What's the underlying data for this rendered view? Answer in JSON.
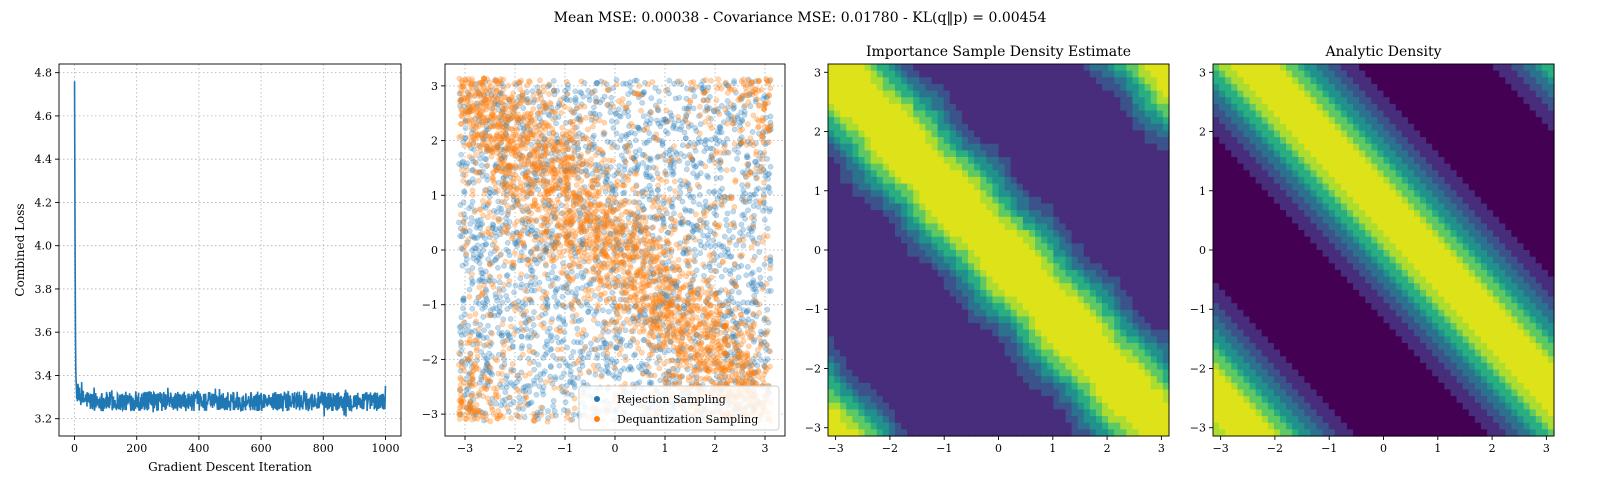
{
  "figure": {
    "suptitle": "Mean MSE: 0.00038 - Covariance MSE: 0.01780 - KL(q‖p) = 0.00454"
  },
  "chart_data": [
    {
      "type": "line",
      "title": "",
      "xlabel": "Gradient Descent Iteration",
      "ylabel": "Combined Loss",
      "xlim": [
        -50,
        1050
      ],
      "ylim": [
        3.12,
        4.84
      ],
      "xticks": [
        0,
        200,
        400,
        600,
        800,
        1000
      ],
      "yticks": [
        3.2,
        3.4,
        3.6,
        3.8,
        4.0,
        4.2,
        4.4,
        4.6,
        4.8
      ],
      "grid": true,
      "color": "#1f77b4",
      "series": [
        {
          "x": [
            0,
            1,
            2,
            3,
            4,
            5,
            6,
            8,
            10,
            13,
            16,
            20,
            25,
            30,
            40,
            50,
            60,
            80,
            100,
            130,
            160,
            200,
            250,
            300,
            350,
            400,
            450,
            500,
            550,
            600,
            650,
            700,
            750,
            800,
            850,
            900,
            950,
            1000
          ],
          "y": [
            4.76,
            4.3,
            3.9,
            3.6,
            3.43,
            3.38,
            3.34,
            3.32,
            3.31,
            3.3,
            3.3,
            3.3,
            3.29,
            3.29,
            3.29,
            3.28,
            3.28,
            3.28,
            3.28,
            3.28,
            3.28,
            3.28,
            3.28,
            3.28,
            3.28,
            3.28,
            3.28,
            3.28,
            3.28,
            3.28,
            3.28,
            3.28,
            3.28,
            3.28,
            3.28,
            3.28,
            3.28,
            3.28
          ],
          "noise_band": [
            3.2,
            3.37
          ]
        }
      ]
    },
    {
      "type": "scatter",
      "title": "",
      "xlabel": "",
      "ylabel": "",
      "xlim": [
        -3.4,
        3.4
      ],
      "ylim": [
        -3.4,
        3.4
      ],
      "xticks": [
        -3,
        -2,
        -1,
        0,
        1,
        2,
        3
      ],
      "yticks": [
        -3,
        -2,
        -1,
        0,
        1,
        2,
        3
      ],
      "grid": true,
      "legend_position": "bottom-right",
      "series": [
        {
          "name": "Rejection Sampling",
          "color": "#1f77b4",
          "distribution": "uniform on [-3.14, 3.14]^2",
          "count": 2500
        },
        {
          "name": "Dequantization Sampling",
          "color": "#ff7f0e",
          "distribution": "concentrated along x + y ≈ 0 and corners (-3,-3), (3,3)",
          "count": 3000
        }
      ]
    },
    {
      "type": "heatmap",
      "title": "Importance Sample Density Estimate",
      "xlim": [
        -3.14,
        3.14
      ],
      "ylim": [
        -3.14,
        3.14
      ],
      "xticks": [
        -3,
        -2,
        -1,
        0,
        1,
        2,
        3
      ],
      "yticks": [
        -3,
        -2,
        -1,
        0,
        1,
        2,
        3
      ],
      "colormap": [
        "#440154",
        "#472d7b",
        "#3b528b",
        "#2c728e",
        "#21918c",
        "#28ae80",
        "#5ec962",
        "#addc30",
        "#dde318"
      ],
      "pattern": "banded along x + y, peak near x + y = 0 and x + y = ±2π"
    },
    {
      "type": "heatmap",
      "title": "Analytic Density",
      "xlim": [
        -3.14,
        3.14
      ],
      "ylim": [
        -3.14,
        3.14
      ],
      "xticks": [
        -3,
        -2,
        -1,
        0,
        1,
        2,
        3
      ],
      "yticks": [
        -3,
        -2,
        -1,
        0,
        1,
        2,
        3
      ],
      "colormap": [
        "#440154",
        "#472d7b",
        "#3b528b",
        "#2c728e",
        "#21918c",
        "#28ae80",
        "#5ec962",
        "#addc30",
        "#dde318"
      ],
      "pattern": "banded along x + y, peak near x + y = 0.7 and x + y = 0.7 − 2π"
    }
  ]
}
